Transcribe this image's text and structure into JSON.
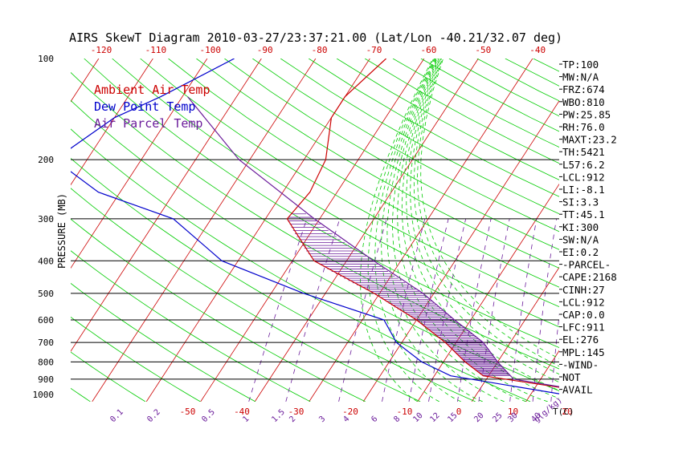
{
  "chart_data": {
    "type": "line",
    "title": "AIRS SkewT Diagram 2010-03-27/23:37:21.00 (Lat/Lon -40.21/32.07 deg)",
    "ylabel": "PRESSURE (MB)",
    "xlabel_unit": "T(C)",
    "mixing_ratio_unit": "g(g/kg)",
    "pressure_ticks": [
      100,
      200,
      300,
      400,
      500,
      600,
      700,
      800,
      900,
      1000
    ],
    "pressure_lines": [
      200,
      300,
      400,
      500,
      600,
      700,
      800,
      900
    ],
    "top_temp_ticks": [
      -120,
      -110,
      -100,
      -90,
      -80,
      -70,
      -60,
      -50,
      -40
    ],
    "bottom_temp_ticks": [
      -50,
      -40,
      -30,
      -20,
      -10,
      0,
      10,
      20
    ],
    "mixing_ratio_labels": [
      "0.1",
      "0.2",
      "0.5",
      "1",
      "1.5",
      "2",
      "3",
      "4",
      "6",
      "8",
      "10",
      "12",
      "15",
      "20",
      "25",
      "30",
      "40"
    ],
    "legend": [
      {
        "label": "Ambient Air Temp",
        "color": "#cc0000"
      },
      {
        "label": "Dew Point Temp",
        "color": "#0000cc"
      },
      {
        "label": "Air Parcel Temp",
        "color": "#6a1b9a"
      }
    ],
    "series": [
      {
        "name": "Ambient Air Temp",
        "color": "#cc0000",
        "points": [
          [
            100,
            -57
          ],
          [
            130,
            -60
          ],
          [
            150,
            -60
          ],
          [
            200,
            -56
          ],
          [
            250,
            -55
          ],
          [
            300,
            -56
          ],
          [
            400,
            -46
          ],
          [
            500,
            -31
          ],
          [
            600,
            -20
          ],
          [
            700,
            -12
          ],
          [
            800,
            -6
          ],
          [
            880,
            -1
          ],
          [
            1000,
            24
          ]
        ]
      },
      {
        "name": "Dew Point Temp",
        "color": "#0000cc",
        "points": [
          [
            100,
            -85
          ],
          [
            130,
            -94
          ],
          [
            150,
            -100
          ],
          [
            200,
            -106
          ],
          [
            250,
            -94
          ],
          [
            300,
            -77
          ],
          [
            400,
            -63
          ],
          [
            500,
            -44
          ],
          [
            600,
            -26
          ],
          [
            700,
            -21
          ],
          [
            800,
            -14
          ],
          [
            880,
            -7
          ],
          [
            1000,
            16
          ]
        ]
      },
      {
        "name": "Air Parcel Temp",
        "color": "#6a1b9a",
        "points": [
          [
            130,
            -89
          ],
          [
            200,
            -72
          ],
          [
            300,
            -51
          ],
          [
            400,
            -35
          ],
          [
            500,
            -22
          ],
          [
            600,
            -13
          ],
          [
            700,
            -5
          ],
          [
            800,
            0
          ],
          [
            900,
            5
          ],
          [
            1000,
            24
          ]
        ]
      }
    ],
    "stats": [
      "TP:100",
      "MW:N/A",
      "FRZ:674",
      "WBO:810",
      "PW:25.85",
      "RH:76.0",
      "MAXT:23.2",
      "TH:5421",
      "L57:6.2",
      "LCL:912",
      "LI:-8.1",
      "SI:3.3",
      "TT:45.1",
      "KI:300",
      "SW:N/A",
      "EI:0.2",
      "-PARCEL-",
      "CAPE:2168",
      "CINH:27",
      "LCL:912",
      "CAP:0.0",
      "LFC:911",
      "EL:276",
      "MPL:145",
      "-WIND-",
      "NOT",
      "AVAIL"
    ],
    "colors": {
      "isotherm": "#cc0000",
      "dry_adiabat": "#00cc00",
      "moist_adiabat": "#00cc00",
      "mixing_ratio": "#6a1b9a",
      "cape_hatch": "#6a1b9a",
      "pressure_line": "#000000"
    }
  }
}
